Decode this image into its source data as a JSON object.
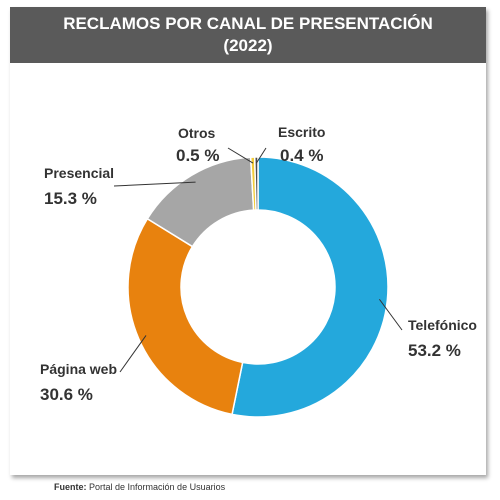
{
  "header": {
    "title_line1": "RECLAMOS POR CANAL DE PRESENTACIÓN",
    "title_line2": "(2022)"
  },
  "footer": {
    "label": "Fuente:",
    "text": "Portal de Información de Usuarios"
  },
  "colors": {
    "header_bg": "#5a5a5a",
    "telefonico": "#24a8dc",
    "pagina_web": "#e8820e",
    "presencial": "#a6a6a6",
    "otros": "#f2cc3a",
    "escrito": "#4d4d4d"
  },
  "chart_data": {
    "type": "pie",
    "variant": "donut",
    "title": "RECLAMOS POR CANAL DE PRESENTACIÓN (2022)",
    "slices": [
      {
        "name": "Telefónico",
        "value": 53.2,
        "label": "53.2 %",
        "color": "#24a8dc"
      },
      {
        "name": "Página web",
        "value": 30.6,
        "label": "30.6 %",
        "color": "#e8820e"
      },
      {
        "name": "Presencial",
        "value": 15.3,
        "label": "15.3 %",
        "color": "#a6a6a6"
      },
      {
        "name": "Otros",
        "value": 0.5,
        "label": "0.5 %",
        "color": "#f2cc3a"
      },
      {
        "name": "Escrito",
        "value": 0.4,
        "label": "0.4 %",
        "color": "#4d4d4d"
      }
    ],
    "legend": "none"
  }
}
